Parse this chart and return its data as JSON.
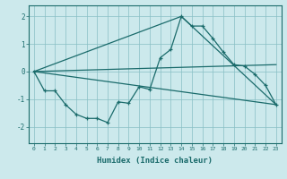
{
  "xlabel": "Humidex (Indice chaleur)",
  "background_color": "#cce9ec",
  "grid_color": "#88bfc4",
  "line_color": "#1a6b6b",
  "xlim": [
    -0.5,
    23.5
  ],
  "ylim": [
    -2.6,
    2.4
  ],
  "yticks": [
    -2,
    -1,
    0,
    1,
    2
  ],
  "xticks": [
    0,
    1,
    2,
    3,
    4,
    5,
    6,
    7,
    8,
    9,
    10,
    11,
    12,
    13,
    14,
    15,
    16,
    17,
    18,
    19,
    20,
    21,
    22,
    23
  ],
  "series1_x": [
    0,
    1,
    2,
    3,
    4,
    5,
    6,
    7,
    8,
    9,
    10,
    11,
    12,
    13,
    14,
    15,
    16,
    17,
    18,
    19,
    20,
    21,
    22,
    23
  ],
  "series1_y": [
    0.0,
    -0.7,
    -0.7,
    -1.2,
    -1.55,
    -1.7,
    -1.7,
    -1.85,
    -1.1,
    -1.15,
    -0.55,
    -0.65,
    0.5,
    0.8,
    2.0,
    1.65,
    1.65,
    1.2,
    0.7,
    0.25,
    0.2,
    -0.1,
    -0.5,
    -1.2
  ],
  "series2_x": [
    0,
    14,
    23
  ],
  "series2_y": [
    0.0,
    2.0,
    -1.2
  ],
  "series3_x": [
    0,
    23
  ],
  "series3_y": [
    0.0,
    -1.2
  ],
  "series4_x": [
    0,
    23
  ],
  "series4_y": [
    0.0,
    0.25
  ]
}
